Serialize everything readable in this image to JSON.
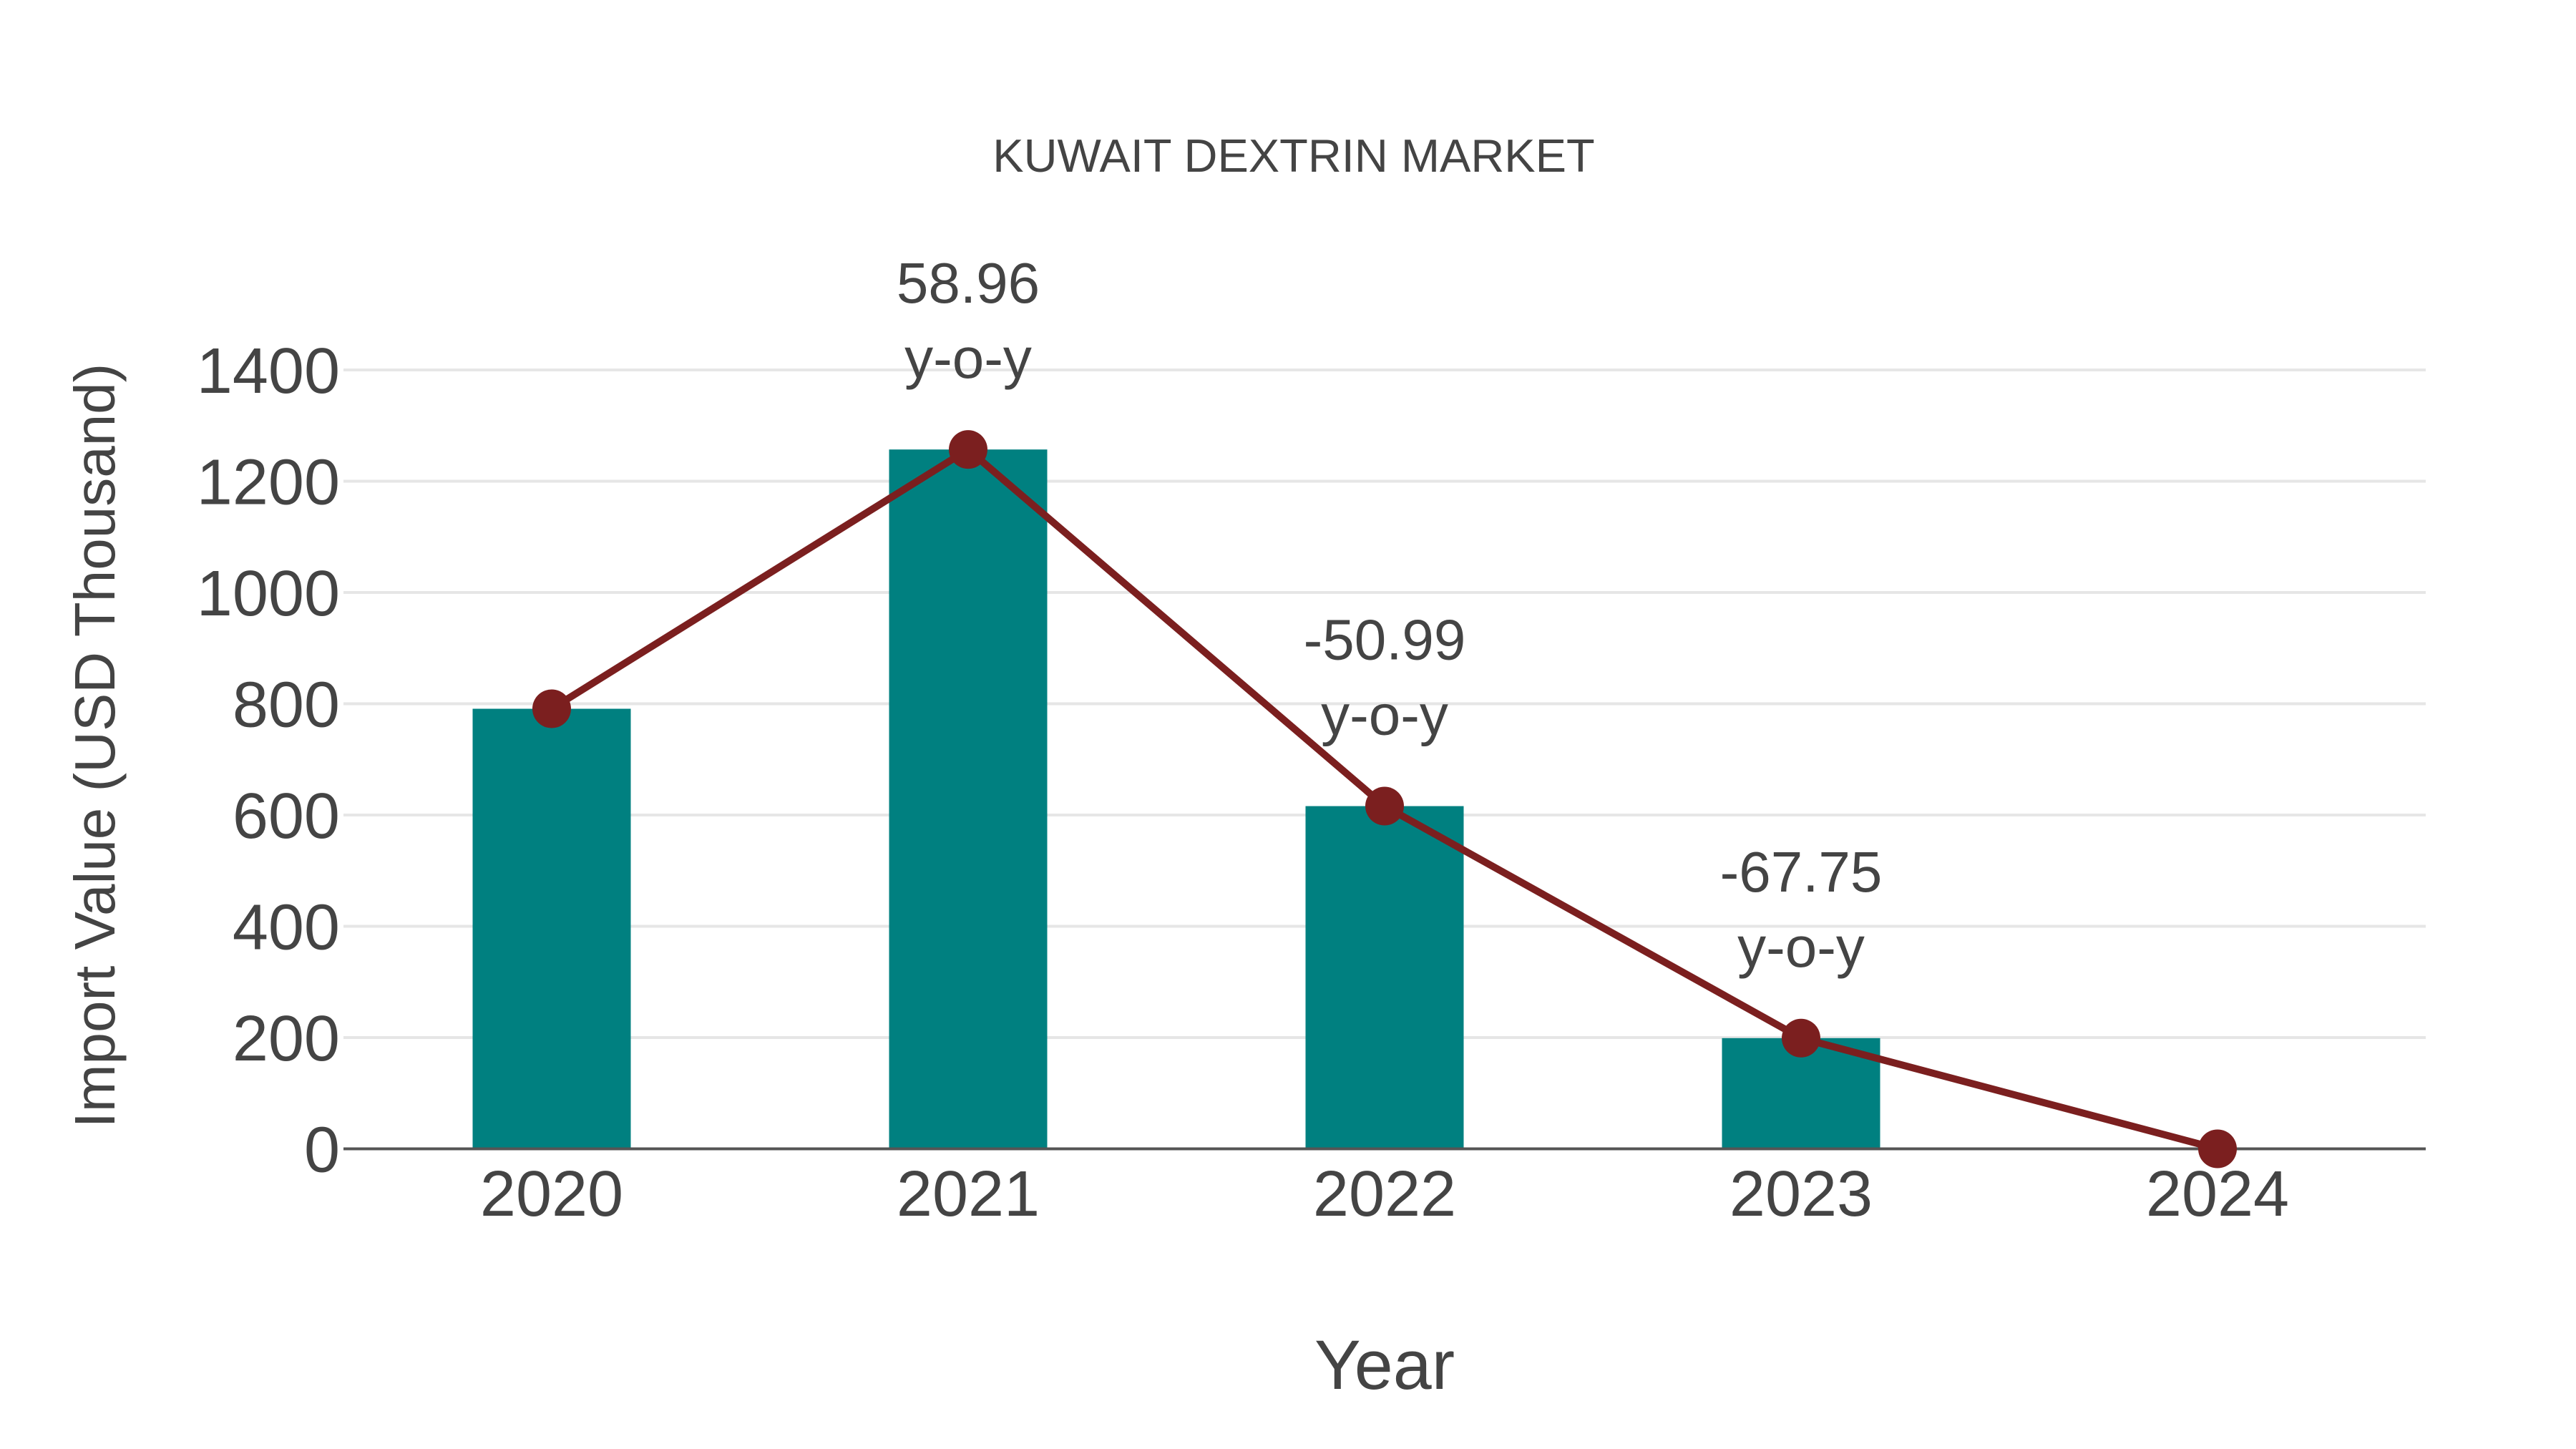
{
  "chart": {
    "title": "KUWAIT DEXTRIN MARKET",
    "xaxis_title": "Year",
    "yaxis_title": "Import Value (USD Thousand)"
  },
  "colors": {
    "bar": "#008080",
    "line": "#7b1f1f",
    "text": "#444444",
    "grid": "#e6e6e6",
    "axis": "#555555"
  },
  "chart_data": {
    "type": "bar",
    "title": "KUWAIT DEXTRIN MARKET",
    "xlabel": "Year",
    "ylabel": "Import Value (USD Thousand)",
    "categories": [
      "2020",
      "2021",
      "2022",
      "2023",
      "2024"
    ],
    "series": [
      {
        "name": "Import Value (bar)",
        "type": "bar",
        "values": [
          791,
          1257,
          616,
          199,
          0
        ]
      },
      {
        "name": "Import Value (line)",
        "type": "line+markers",
        "values": [
          791,
          1257,
          616,
          199,
          0
        ]
      }
    ],
    "annotations": [
      {
        "category": "2021",
        "text_value": "58.96",
        "text_unit": "y-o-y"
      },
      {
        "category": "2022",
        "text_value": "-50.99",
        "text_unit": "y-o-y"
      },
      {
        "category": "2023",
        "text_value": "-67.75",
        "text_unit": "y-o-y"
      }
    ],
    "yticks": [
      0,
      200,
      400,
      600,
      800,
      1000,
      1200,
      1400
    ],
    "ylim": [
      0,
      1400
    ],
    "grid": true,
    "legend": false
  }
}
